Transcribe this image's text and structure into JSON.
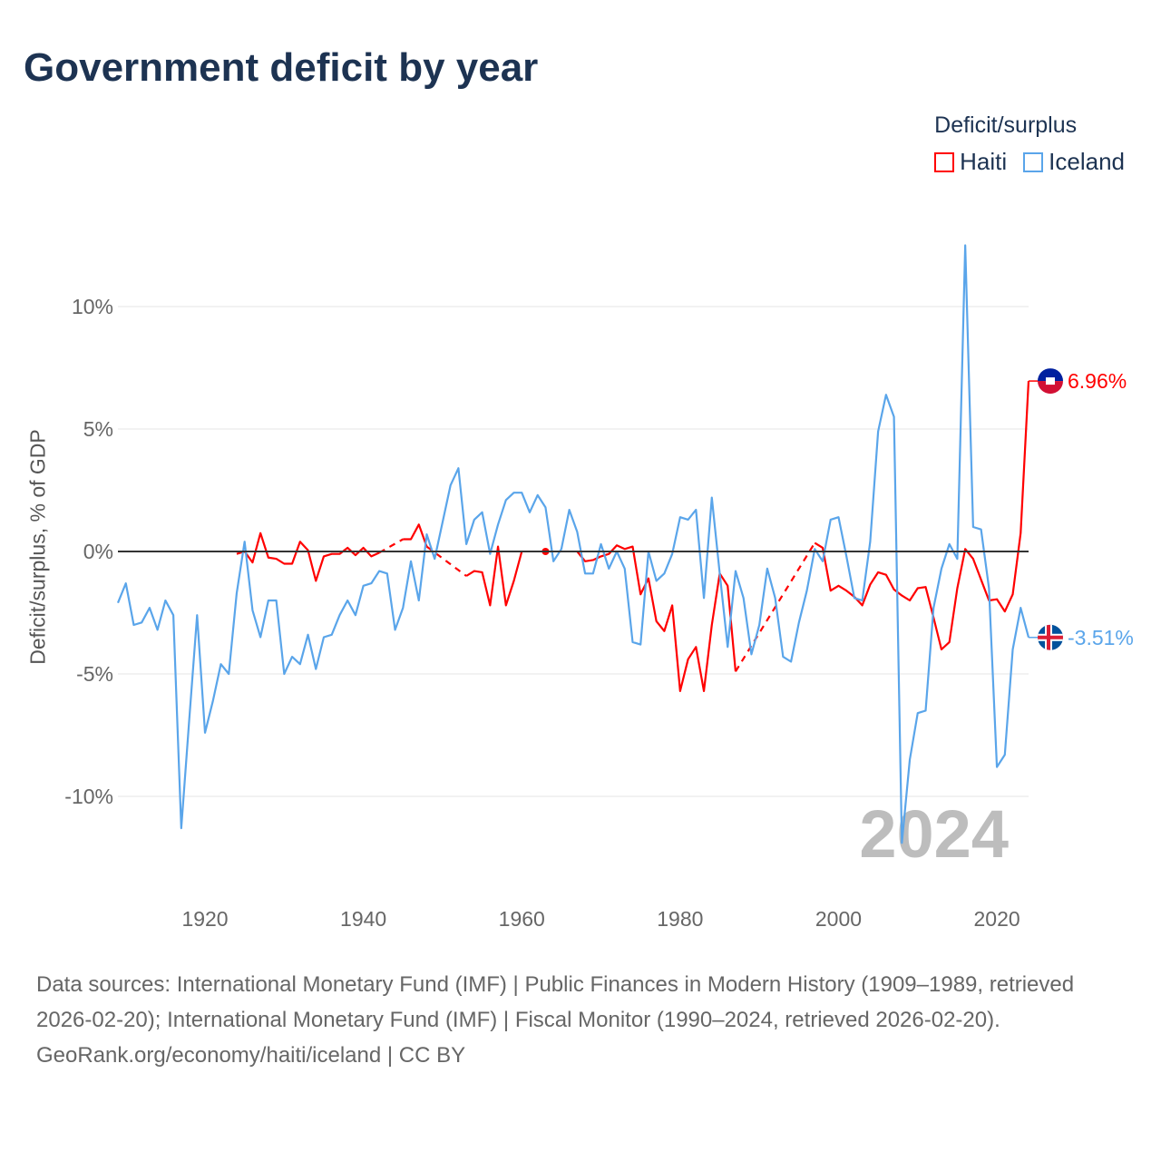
{
  "title": "Government deficit by year",
  "legend": {
    "title": "Deficit/surplus",
    "items": [
      {
        "name": "Haiti",
        "color": "#ff0000"
      },
      {
        "name": "Iceland",
        "color": "#5aa5ea"
      }
    ]
  },
  "footer": {
    "sources": "Data sources: International Monetary Fund (IMF) | Public Finances in Modern History (1909–1989, retrieved 2026-02-20); International Monetary Fund (IMF) | Fiscal Monitor (1990–2024, retrieved 2026-02-20).",
    "credit": "GeoRank.org/economy/haiti/iceland | CC BY"
  },
  "chart_data": {
    "type": "line",
    "title": "Government deficit by year",
    "xlabel": "",
    "ylabel": "Deficit/surplus, % of GDP",
    "xlim": [
      1909,
      2024
    ],
    "ylim": [
      -13,
      13
    ],
    "xticks": [
      1920,
      1940,
      1960,
      1980,
      2000,
      2020
    ],
    "yticks": [
      {
        "v": 10,
        "label": "10%"
      },
      {
        "v": 5,
        "label": "5%"
      },
      {
        "v": 0,
        "label": "0%"
      },
      {
        "v": -5,
        "label": "-5%"
      },
      {
        "v": -10,
        "label": "-10%"
      }
    ],
    "year_watermark": "2024",
    "series": [
      {
        "name": "Haiti",
        "color": "#ff0000",
        "end_label": "6.96%",
        "flag": "haiti-flag",
        "points": [
          [
            1924,
            -0.1
          ],
          [
            1925,
            0.0
          ],
          [
            1926,
            -0.45
          ],
          [
            1927,
            0.75
          ],
          [
            1928,
            -0.25
          ],
          [
            1929,
            -0.3
          ],
          [
            1930,
            -0.5
          ],
          [
            1931,
            -0.5
          ],
          [
            1932,
            0.4
          ],
          [
            1933,
            0.05
          ],
          [
            1934,
            -1.2
          ],
          [
            1935,
            -0.2
          ],
          [
            1936,
            -0.1
          ],
          [
            1937,
            -0.1
          ],
          [
            1938,
            0.15
          ],
          [
            1939,
            -0.15
          ],
          [
            1940,
            0.15
          ],
          [
            1941,
            -0.2
          ],
          [
            1942,
            -0.05
          ],
          [
            1945,
            0.5
          ],
          [
            1946,
            0.5
          ],
          [
            1947,
            1.1
          ],
          [
            1948,
            0.2
          ],
          [
            1953,
            -1.0
          ],
          [
            1954,
            -0.8
          ],
          [
            1955,
            -0.85
          ],
          [
            1956,
            -2.2
          ],
          [
            1957,
            0.2
          ],
          [
            1958,
            -2.2
          ],
          [
            1959,
            -1.2
          ],
          [
            1960,
            0.0
          ],
          [
            1963,
            0.0
          ],
          [
            1967,
            0.0
          ],
          [
            1968,
            -0.4
          ],
          [
            1969,
            -0.35
          ],
          [
            1970,
            -0.2
          ],
          [
            1971,
            -0.1
          ],
          [
            1972,
            0.25
          ],
          [
            1973,
            0.1
          ],
          [
            1974,
            0.2
          ],
          [
            1975,
            -1.75
          ],
          [
            1976,
            -1.1
          ],
          [
            1977,
            -2.85
          ],
          [
            1978,
            -3.25
          ],
          [
            1979,
            -2.2
          ],
          [
            1980,
            -5.7
          ],
          [
            1981,
            -4.4
          ],
          [
            1982,
            -3.9
          ],
          [
            1983,
            -5.7
          ],
          [
            1984,
            -3.0
          ],
          [
            1985,
            -0.9
          ],
          [
            1986,
            -1.4
          ],
          [
            1987,
            -4.9
          ],
          [
            1997,
            0.35
          ],
          [
            1998,
            0.15
          ],
          [
            1999,
            -1.6
          ],
          [
            2000,
            -1.4
          ],
          [
            2001,
            -1.6
          ],
          [
            2002,
            -1.85
          ],
          [
            2003,
            -2.2
          ],
          [
            2004,
            -1.35
          ],
          [
            2005,
            -0.85
          ],
          [
            2006,
            -0.95
          ],
          [
            2007,
            -1.55
          ],
          [
            2008,
            -1.8
          ],
          [
            2009,
            -2.0
          ],
          [
            2010,
            -1.5
          ],
          [
            2011,
            -1.45
          ],
          [
            2012,
            -2.7
          ],
          [
            2013,
            -4.0
          ],
          [
            2014,
            -3.7
          ],
          [
            2015,
            -1.5
          ],
          [
            2016,
            0.1
          ],
          [
            2017,
            -0.3
          ],
          [
            2018,
            -1.15
          ],
          [
            2019,
            -2.0
          ],
          [
            2020,
            -1.95
          ],
          [
            2021,
            -2.45
          ],
          [
            2022,
            -1.75
          ],
          [
            2023,
            0.75
          ],
          [
            2024,
            6.96
          ]
        ]
      },
      {
        "name": "Iceland",
        "color": "#5aa5ea",
        "end_label": "-3.51%",
        "flag": "iceland-flag",
        "points": [
          [
            1909,
            -2.1
          ],
          [
            1910,
            -1.3
          ],
          [
            1911,
            -3.0
          ],
          [
            1912,
            -2.9
          ],
          [
            1913,
            -2.3
          ],
          [
            1914,
            -3.2
          ],
          [
            1915,
            -2.0
          ],
          [
            1916,
            -2.6
          ],
          [
            1917,
            -11.3
          ],
          [
            1918,
            -6.9
          ],
          [
            1919,
            -2.6
          ],
          [
            1920,
            -7.4
          ],
          [
            1921,
            -6.1
          ],
          [
            1922,
            -4.6
          ],
          [
            1923,
            -5.0
          ],
          [
            1924,
            -1.7
          ],
          [
            1925,
            0.4
          ],
          [
            1926,
            -2.4
          ],
          [
            1927,
            -3.5
          ],
          [
            1928,
            -2.0
          ],
          [
            1929,
            -2.0
          ],
          [
            1930,
            -5.0
          ],
          [
            1931,
            -4.3
          ],
          [
            1932,
            -4.6
          ],
          [
            1933,
            -3.4
          ],
          [
            1934,
            -4.8
          ],
          [
            1935,
            -3.5
          ],
          [
            1936,
            -3.4
          ],
          [
            1937,
            -2.6
          ],
          [
            1938,
            -2.0
          ],
          [
            1939,
            -2.6
          ],
          [
            1940,
            -1.4
          ],
          [
            1941,
            -1.3
          ],
          [
            1942,
            -0.8
          ],
          [
            1943,
            -0.9
          ],
          [
            1944,
            -3.2
          ],
          [
            1945,
            -2.3
          ],
          [
            1946,
            -0.4
          ],
          [
            1947,
            -2.0
          ],
          [
            1948,
            0.7
          ],
          [
            1949,
            -0.3
          ],
          [
            1950,
            1.2
          ],
          [
            1951,
            2.7
          ],
          [
            1952,
            3.4
          ],
          [
            1953,
            0.3
          ],
          [
            1954,
            1.3
          ],
          [
            1955,
            1.6
          ],
          [
            1956,
            -0.1
          ],
          [
            1957,
            1.1
          ],
          [
            1958,
            2.1
          ],
          [
            1959,
            2.4
          ],
          [
            1960,
            2.4
          ],
          [
            1961,
            1.6
          ],
          [
            1962,
            2.3
          ],
          [
            1963,
            1.8
          ],
          [
            1964,
            -0.4
          ],
          [
            1965,
            0.1
          ],
          [
            1966,
            1.7
          ],
          [
            1967,
            0.8
          ],
          [
            1968,
            -0.9
          ],
          [
            1969,
            -0.9
          ],
          [
            1970,
            0.3
          ],
          [
            1971,
            -0.7
          ],
          [
            1972,
            0.0
          ],
          [
            1973,
            -0.7
          ],
          [
            1974,
            -3.7
          ],
          [
            1975,
            -3.8
          ],
          [
            1976,
            0.0
          ],
          [
            1977,
            -1.2
          ],
          [
            1978,
            -0.9
          ],
          [
            1979,
            -0.1
          ],
          [
            1980,
            1.4
          ],
          [
            1981,
            1.3
          ],
          [
            1982,
            1.7
          ],
          [
            1983,
            -1.9
          ],
          [
            1984,
            2.2
          ],
          [
            1985,
            -0.9
          ],
          [
            1986,
            -3.9
          ],
          [
            1987,
            -0.8
          ],
          [
            1988,
            -1.9
          ],
          [
            1989,
            -4.2
          ],
          [
            1990,
            -3.0
          ],
          [
            1991,
            -0.7
          ],
          [
            1992,
            -1.9
          ],
          [
            1993,
            -4.3
          ],
          [
            1994,
            -4.5
          ],
          [
            1995,
            -2.9
          ],
          [
            1996,
            -1.6
          ],
          [
            1997,
            0.1
          ],
          [
            1998,
            -0.4
          ],
          [
            1999,
            1.3
          ],
          [
            2000,
            1.4
          ],
          [
            2001,
            -0.2
          ],
          [
            2002,
            -1.9
          ],
          [
            2003,
            -2.0
          ],
          [
            2004,
            0.4
          ],
          [
            2005,
            4.9
          ],
          [
            2006,
            6.4
          ],
          [
            2007,
            5.5
          ],
          [
            2008,
            -11.9
          ],
          [
            2009,
            -8.5
          ],
          [
            2010,
            -6.6
          ],
          [
            2011,
            -6.5
          ],
          [
            2012,
            -2.3
          ],
          [
            2013,
            -0.7
          ],
          [
            2014,
            0.3
          ],
          [
            2015,
            -0.3
          ],
          [
            2016,
            12.5
          ],
          [
            2017,
            1.0
          ],
          [
            2018,
            0.9
          ],
          [
            2019,
            -1.5
          ],
          [
            2020,
            -8.8
          ],
          [
            2021,
            -8.3
          ],
          [
            2022,
            -4.0
          ],
          [
            2023,
            -2.3
          ],
          [
            2024,
            -3.51
          ]
        ]
      }
    ]
  }
}
